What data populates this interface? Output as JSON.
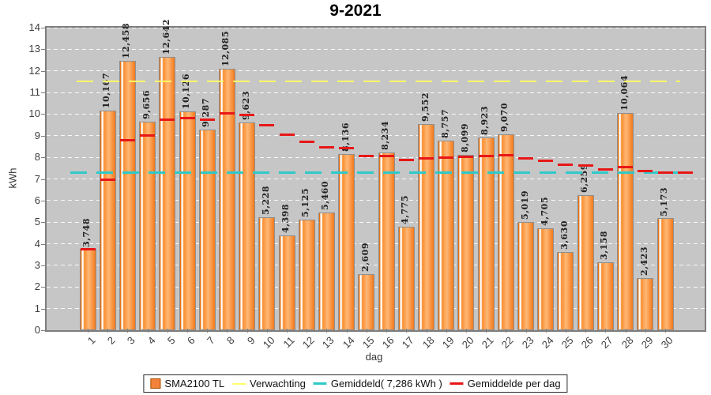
{
  "title": "9-2021",
  "y_axis": {
    "label": "kWh",
    "ticks": [
      0,
      1,
      2,
      3,
      4,
      5,
      6,
      7,
      8,
      9,
      10,
      11,
      12,
      13,
      14
    ]
  },
  "x_axis": {
    "label": "dag"
  },
  "legend": [
    {
      "label": "SMA2100 TL",
      "marker": "square",
      "color": "#f5823c"
    },
    {
      "label": "Verwachting",
      "marker": "dash",
      "color": "#ffff66"
    },
    {
      "label": "Gemiddeld( 7,286 kWh )",
      "marker": "dash",
      "color": "#2fc9c9"
    },
    {
      "label": "Gemiddelde per dag",
      "marker": "dash",
      "color": "#e81717"
    }
  ],
  "colors": {
    "plot_background": "#c6c6c6",
    "bar_fill": "#f5823c",
    "verwachting": "#ffff66",
    "gemiddeld": "#2fc9c9",
    "gemiddelde_per_dag": "#e81717"
  },
  "chart_data": {
    "type": "bar",
    "title": "9-2021",
    "xlabel": "dag",
    "ylabel": "kWh",
    "ylim": [
      0,
      14
    ],
    "grid": true,
    "legend_position": "bottom",
    "categories": [
      1,
      2,
      3,
      4,
      5,
      6,
      7,
      8,
      9,
      10,
      11,
      12,
      13,
      14,
      15,
      16,
      17,
      18,
      19,
      20,
      21,
      22,
      23,
      24,
      25,
      26,
      27,
      28,
      29,
      30
    ],
    "series": [
      {
        "name": "SMA2100 TL",
        "type": "bar",
        "values": [
          3.748,
          10.167,
          12.458,
          9.656,
          12.642,
          10.126,
          9.287,
          12.085,
          9.623,
          5.228,
          4.398,
          5.125,
          5.46,
          8.136,
          2.609,
          8.234,
          4.775,
          9.552,
          8.757,
          8.099,
          8.923,
          9.07,
          5.019,
          4.705,
          3.63,
          6.259,
          3.158,
          10.064,
          2.423,
          5.173
        ],
        "value_labels": [
          "3,748",
          "10,167",
          "12,458",
          "9,656",
          "12,642",
          "10,126",
          "9,287",
          "12,085",
          "9,623",
          "5,228",
          "4,398",
          "5,125",
          "5,460",
          "8,136",
          "2,609",
          "8,234",
          "4,775",
          "9,552",
          "8,757",
          "8,099",
          "8,923",
          "9,070",
          "5,019",
          "4,705",
          "3,630",
          "6,259",
          "3,158",
          "10,064",
          "2,423",
          "5,173"
        ]
      },
      {
        "name": "Verwachting",
        "type": "line",
        "constant_value": 11.5
      },
      {
        "name": "Gemiddeld( 7,286 kWh )",
        "type": "line",
        "constant_value": 7.286
      },
      {
        "name": "Gemiddelde per dag",
        "type": "line",
        "values": [
          3.748,
          6.958,
          8.791,
          9.007,
          9.734,
          9.8,
          9.726,
          10.021,
          9.977,
          9.502,
          9.038,
          8.712,
          8.462,
          8.438,
          8.05,
          8.061,
          7.868,
          7.962,
          8.003,
          8.008,
          8.052,
          8.098,
          7.964,
          7.828,
          7.66,
          7.607,
          7.442,
          7.535,
          7.359,
          7.286
        ]
      }
    ]
  }
}
